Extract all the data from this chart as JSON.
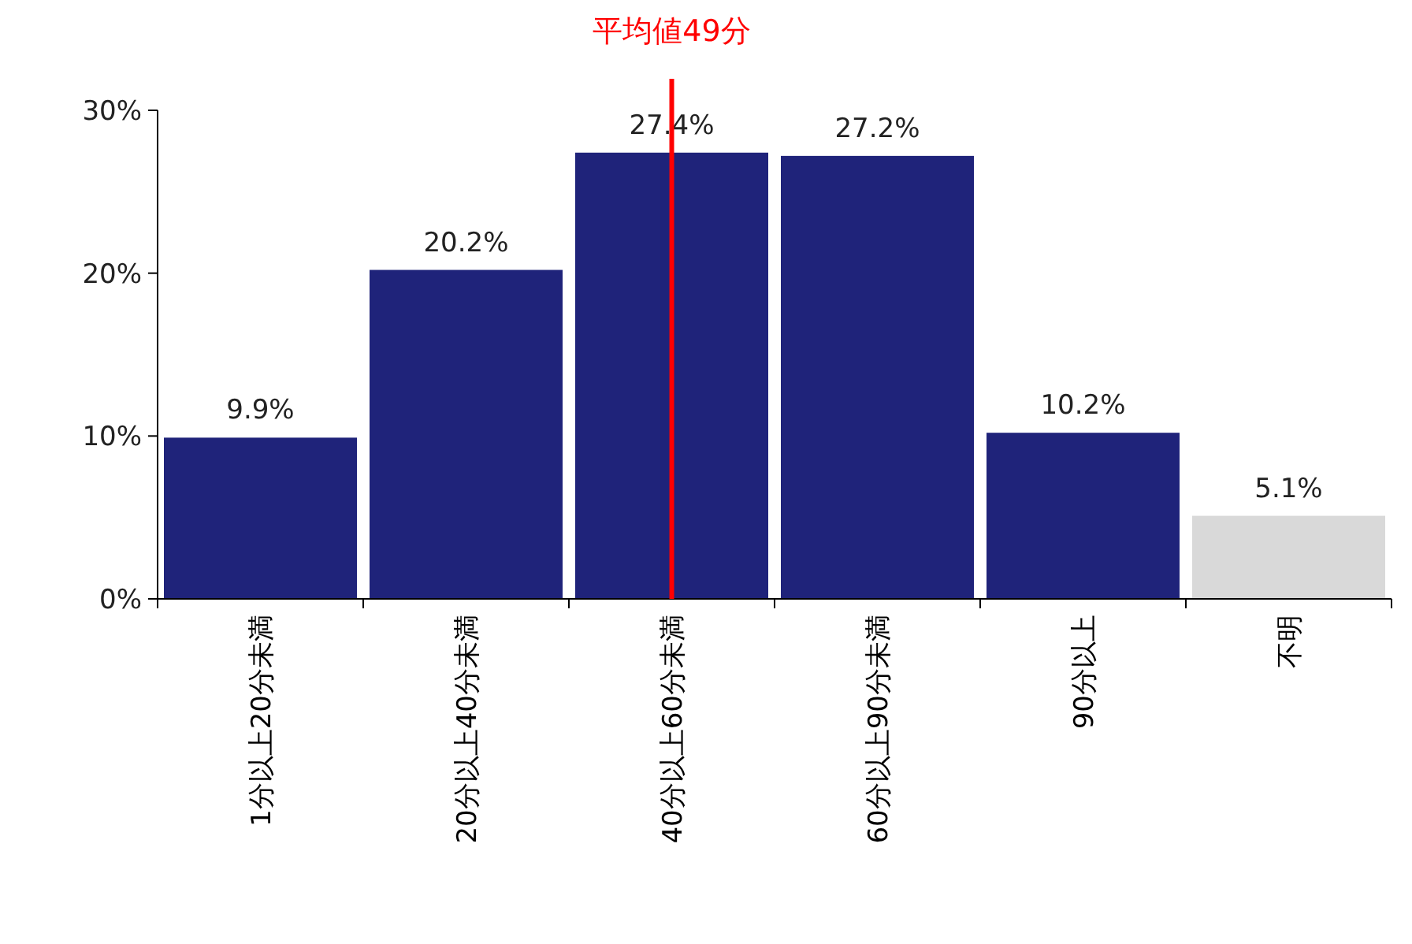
{
  "chart_data": {
    "type": "bar",
    "categories": [
      "1分以上20分未満",
      "20分以上40分未満",
      "40分以上60分未満",
      "60分以上90分未満",
      "90分以上",
      "不明"
    ],
    "values": [
      9.9,
      20.2,
      27.4,
      27.2,
      10.2,
      5.1
    ],
    "colors": [
      "#1f237a",
      "#1f237a",
      "#1f237a",
      "#1f237a",
      "#1f237a",
      "#d9d9d9"
    ],
    "value_labels": [
      "9.9%",
      "20.2%",
      "27.4%",
      "27.2%",
      "10.2%",
      "5.1%"
    ],
    "ylim": [
      0,
      30
    ],
    "yticks": [
      {
        "value": 0,
        "label": "0%"
      },
      {
        "value": 10,
        "label": "10%"
      },
      {
        "value": 20,
        "label": "20%"
      },
      {
        "value": 30,
        "label": "30%"
      }
    ],
    "ref_lines": [
      {
        "axis": "x",
        "value": "40分以上60分未満",
        "label": "平均値49分",
        "color": "#ff0000"
      }
    ]
  }
}
